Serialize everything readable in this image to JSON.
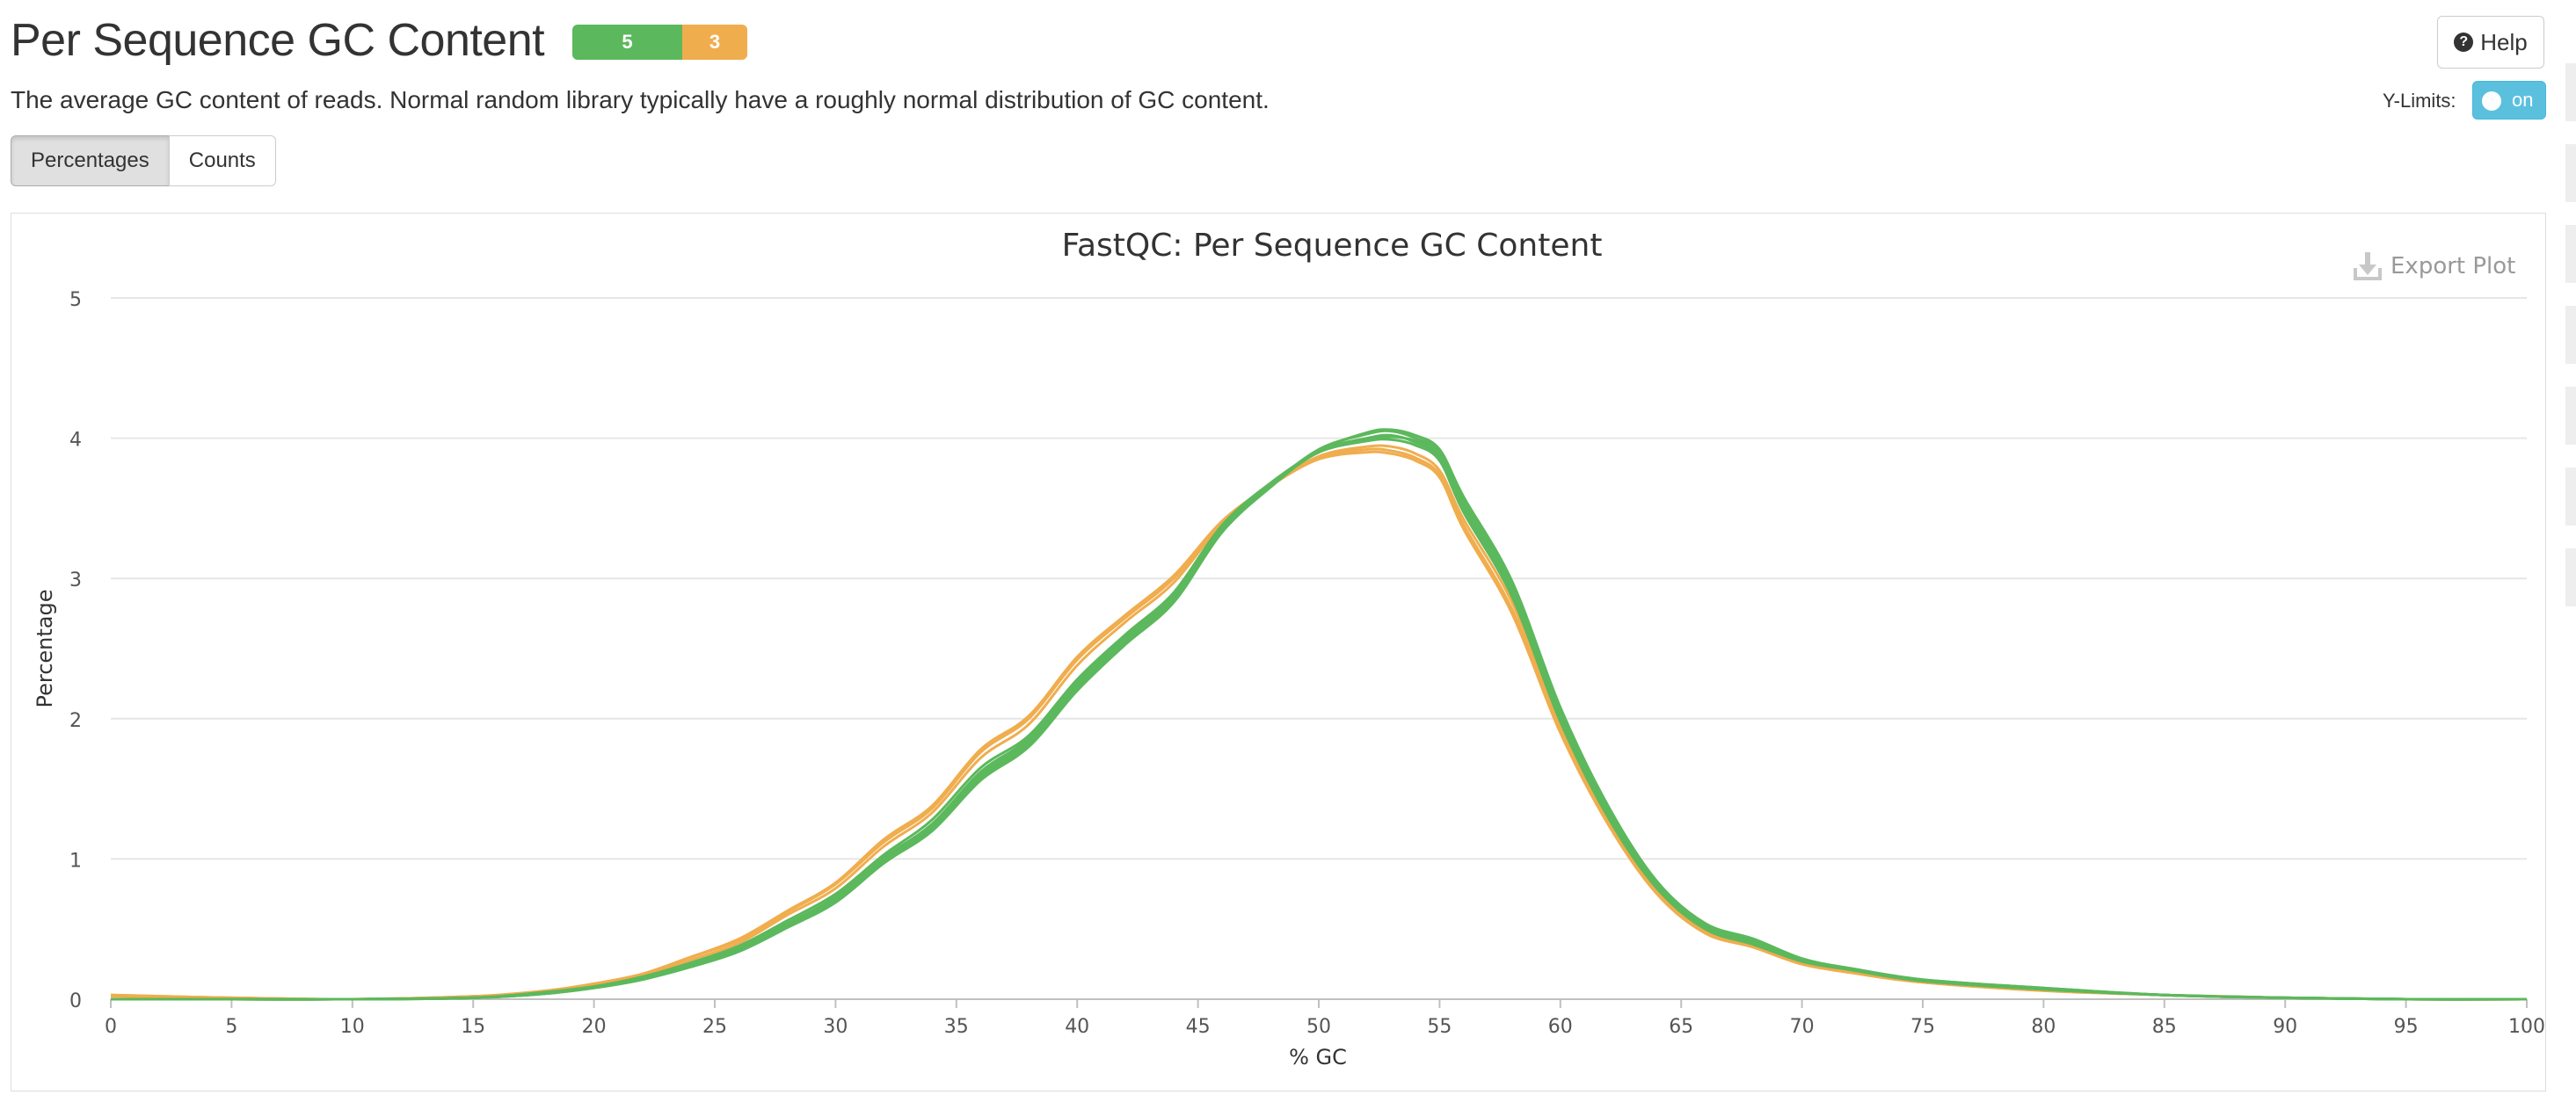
{
  "header": {
    "title": "Per Sequence GC Content",
    "status_pass": "5",
    "status_warn": "3",
    "help_label": "Help"
  },
  "description": "The average GC content of reads. Normal random library typically have a roughly normal distribution of GC content.",
  "controls": {
    "ylimits_label": "Y-Limits:",
    "ylimits_state": "on",
    "views": [
      "Percentages",
      "Counts"
    ],
    "active_view": "Percentages"
  },
  "export_label": "Export Plot",
  "colors": {
    "pass": "#5cb85c",
    "warn": "#f0ad4e",
    "toggle": "#5bc0de"
  },
  "chart_data": {
    "type": "line",
    "title": "FastQC: Per Sequence GC Content",
    "xlabel": "% GC",
    "ylabel": "Percentage",
    "xlim": [
      0,
      100
    ],
    "ylim": [
      0,
      5
    ],
    "xticks": [
      0,
      5,
      10,
      15,
      20,
      25,
      30,
      35,
      40,
      45,
      50,
      55,
      60,
      65,
      70,
      75,
      80,
      85,
      90,
      95,
      100
    ],
    "yticks": [
      0,
      1,
      2,
      3,
      4,
      5
    ],
    "grid": true,
    "legend": "none",
    "x": [
      0,
      5,
      10,
      15,
      18,
      20,
      22,
      24,
      26,
      28,
      30,
      32,
      34,
      36,
      38,
      40,
      42,
      44,
      46,
      48,
      50,
      52,
      53,
      54,
      55,
      56,
      58,
      60,
      62,
      64,
      66,
      68,
      70,
      72,
      75,
      80,
      85,
      90,
      95,
      100
    ],
    "series": [
      {
        "status": "pass",
        "values": [
          0.0,
          0.0,
          0.0,
          0.01,
          0.04,
          0.08,
          0.14,
          0.24,
          0.35,
          0.52,
          0.7,
          0.98,
          1.22,
          1.58,
          1.82,
          2.22,
          2.55,
          2.85,
          3.35,
          3.66,
          3.92,
          4.03,
          4.05,
          4.0,
          3.9,
          3.55,
          2.95,
          2.05,
          1.35,
          0.83,
          0.53,
          0.42,
          0.28,
          0.22,
          0.14,
          0.08,
          0.03,
          0.01,
          0.0,
          0.0
        ]
      },
      {
        "status": "pass",
        "values": [
          0.0,
          0.0,
          0.0,
          0.01,
          0.04,
          0.09,
          0.15,
          0.25,
          0.37,
          0.54,
          0.73,
          1.01,
          1.25,
          1.62,
          1.86,
          2.26,
          2.58,
          2.88,
          3.37,
          3.67,
          3.91,
          4.0,
          4.02,
          3.97,
          3.86,
          3.5,
          2.9,
          2.0,
          1.31,
          0.8,
          0.51,
          0.4,
          0.27,
          0.21,
          0.13,
          0.07,
          0.03,
          0.01,
          0.0,
          0.0
        ]
      },
      {
        "status": "pass",
        "values": [
          0.0,
          0.0,
          0.0,
          0.01,
          0.05,
          0.09,
          0.16,
          0.26,
          0.38,
          0.56,
          0.75,
          1.03,
          1.28,
          1.65,
          1.88,
          2.28,
          2.6,
          2.9,
          3.38,
          3.68,
          3.9,
          3.98,
          3.99,
          3.95,
          3.84,
          3.47,
          2.87,
          1.98,
          1.29,
          0.79,
          0.5,
          0.39,
          0.27,
          0.21,
          0.13,
          0.07,
          0.03,
          0.01,
          0.0,
          0.0
        ]
      },
      {
        "status": "pass",
        "values": [
          0.0,
          0.0,
          0.0,
          0.01,
          0.04,
          0.08,
          0.14,
          0.23,
          0.34,
          0.51,
          0.69,
          0.97,
          1.2,
          1.56,
          1.8,
          2.2,
          2.53,
          2.83,
          3.33,
          3.65,
          3.91,
          4.04,
          4.06,
          4.02,
          3.92,
          3.58,
          2.98,
          2.08,
          1.37,
          0.84,
          0.54,
          0.43,
          0.29,
          0.22,
          0.14,
          0.08,
          0.03,
          0.01,
          0.0,
          0.0
        ]
      },
      {
        "status": "pass",
        "values": [
          0.0,
          0.0,
          0.0,
          0.01,
          0.05,
          0.09,
          0.15,
          0.25,
          0.36,
          0.53,
          0.72,
          1.0,
          1.24,
          1.6,
          1.84,
          2.24,
          2.57,
          2.87,
          3.36,
          3.66,
          3.9,
          3.99,
          4.01,
          3.98,
          3.88,
          3.52,
          2.92,
          2.02,
          1.33,
          0.81,
          0.52,
          0.41,
          0.28,
          0.21,
          0.13,
          0.07,
          0.03,
          0.01,
          0.0,
          0.0
        ]
      },
      {
        "status": "warn",
        "values": [
          0.03,
          0.01,
          0.0,
          0.02,
          0.05,
          0.11,
          0.18,
          0.3,
          0.42,
          0.62,
          0.82,
          1.12,
          1.36,
          1.76,
          2.0,
          2.42,
          2.72,
          3.0,
          3.4,
          3.66,
          3.86,
          3.92,
          3.91,
          3.86,
          3.74,
          3.38,
          2.78,
          1.93,
          1.26,
          0.76,
          0.48,
          0.37,
          0.25,
          0.19,
          0.12,
          0.07,
          0.03,
          0.01,
          0.0,
          0.0
        ]
      },
      {
        "status": "warn",
        "values": [
          0.02,
          0.01,
          0.0,
          0.02,
          0.05,
          0.1,
          0.17,
          0.28,
          0.4,
          0.6,
          0.79,
          1.09,
          1.33,
          1.72,
          1.96,
          2.38,
          2.69,
          2.97,
          3.39,
          3.66,
          3.87,
          3.94,
          3.94,
          3.89,
          3.77,
          3.42,
          2.83,
          1.96,
          1.28,
          0.78,
          0.49,
          0.38,
          0.26,
          0.2,
          0.12,
          0.07,
          0.03,
          0.01,
          0.0,
          0.0
        ]
      },
      {
        "status": "warn",
        "values": [
          0.03,
          0.01,
          0.0,
          0.02,
          0.06,
          0.11,
          0.18,
          0.3,
          0.43,
          0.63,
          0.83,
          1.14,
          1.38,
          1.78,
          2.02,
          2.44,
          2.74,
          3.02,
          3.41,
          3.66,
          3.85,
          3.9,
          3.89,
          3.84,
          3.72,
          3.35,
          2.75,
          1.9,
          1.24,
          0.75,
          0.47,
          0.37,
          0.25,
          0.19,
          0.12,
          0.06,
          0.03,
          0.01,
          0.0,
          0.0
        ]
      }
    ]
  }
}
